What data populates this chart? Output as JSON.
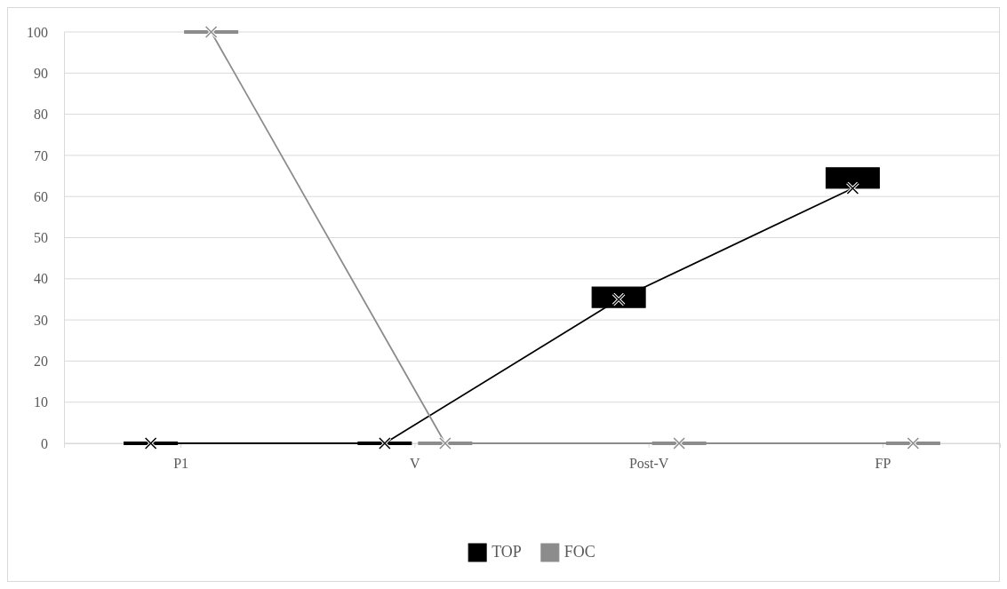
{
  "chart_data": {
    "type": "box",
    "categories": [
      "P1",
      "V",
      "Post-V",
      "FP"
    ],
    "series": [
      {
        "name": "TOP",
        "color": "#000000",
        "boxes": [
          {
            "low": 0,
            "q1": 0,
            "median": 0,
            "q3": 0,
            "high": 0
          },
          {
            "low": 0,
            "q1": 0,
            "median": 0,
            "q3": 0,
            "high": 0
          },
          {
            "low": 33,
            "q1": 33,
            "median": 35,
            "q3": 38,
            "high": 38
          },
          {
            "low": 62,
            "q1": 62,
            "median": 64,
            "q3": 67,
            "high": 67
          }
        ]
      },
      {
        "name": "FOC",
        "color": "#8c8c8c",
        "boxes": [
          {
            "low": 100,
            "q1": 100,
            "median": 100,
            "q3": 100,
            "high": 100
          },
          {
            "low": 0,
            "q1": 0,
            "median": 0,
            "q3": 0,
            "high": 0
          },
          {
            "low": 0,
            "q1": 0,
            "median": 0,
            "q3": 0,
            "high": 0
          },
          {
            "low": 0,
            "q1": 0,
            "median": 0,
            "q3": 0,
            "high": 0
          }
        ]
      },
      {
        "type": "line",
        "color": "#000000",
        "values": [
          0,
          0,
          35,
          62
        ]
      },
      {
        "type": "line",
        "color": "#8c8c8c",
        "values": [
          100,
          0,
          0,
          0
        ]
      }
    ],
    "ylim": [
      0,
      100
    ],
    "yticks": [
      0,
      10,
      20,
      30,
      40,
      50,
      60,
      70,
      80,
      90,
      100
    ],
    "grid": "y",
    "legend": "bottom",
    "marker": "cross",
    "line_style": "solid"
  }
}
